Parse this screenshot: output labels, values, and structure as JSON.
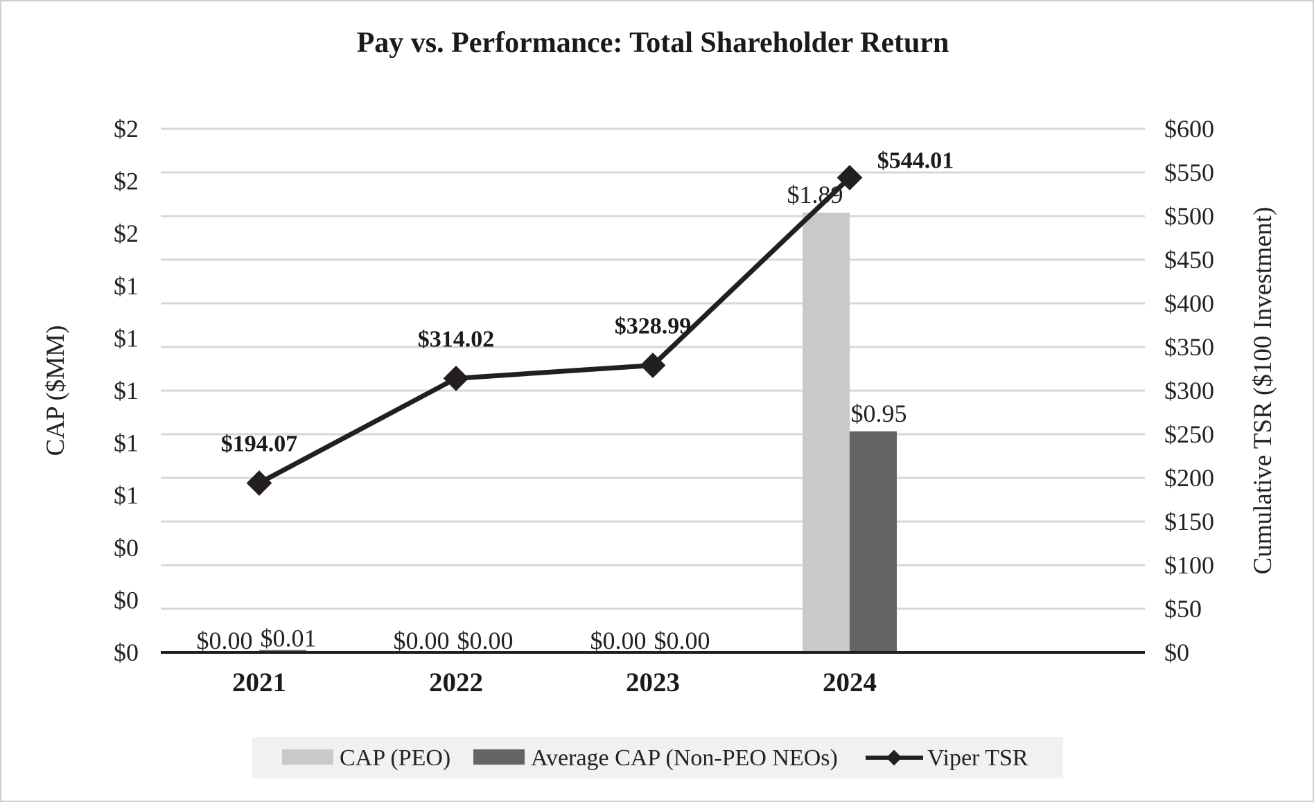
{
  "chart_data": {
    "type": "bar",
    "title": "Pay vs. Performance: Total Shareholder Return",
    "categories": [
      "2021",
      "2022",
      "2023",
      "2024"
    ],
    "ylabel": "CAP ($MM)",
    "ylabel_right": "Cumulative TSR ($100 Investment)",
    "ylim": [
      0,
      2.25
    ],
    "ylim_right": [
      0,
      600
    ],
    "y_ticks": [
      "$0",
      "$0",
      "$0",
      "$1",
      "$1",
      "$1",
      "$1",
      "$1",
      "$2",
      "$2",
      "$2"
    ],
    "y_ticks_right": [
      "$0",
      "$50",
      "$100",
      "$150",
      "$200",
      "$250",
      "$300",
      "$350",
      "$400",
      "$450",
      "$500",
      "$550",
      "$600"
    ],
    "grid": true,
    "legend_position": "bottom",
    "series": [
      {
        "name": "CAP (PEO)",
        "kind": "bar",
        "axis": "left",
        "color": "#c8c9cb",
        "values": [
          0.0,
          0.0,
          0.0,
          1.89
        ],
        "labels": [
          "$0.00",
          "$0.00",
          "$0.00",
          "$1.89"
        ]
      },
      {
        "name": "Average CAP (Non-PEO NEOs)",
        "kind": "bar",
        "axis": "left",
        "color": "#636466",
        "values": [
          0.01,
          0.0,
          0.0,
          0.95
        ],
        "labels": [
          "$0.01",
          "$0.00",
          "$0.00",
          "$0.95"
        ]
      },
      {
        "name": "Viper TSR",
        "kind": "line",
        "axis": "right",
        "color": "#231f20",
        "values": [
          194.07,
          314.02,
          328.99,
          544.01
        ],
        "labels": [
          "$194.07",
          "$314.02",
          "$328.99",
          "$544.01"
        ]
      }
    ]
  }
}
